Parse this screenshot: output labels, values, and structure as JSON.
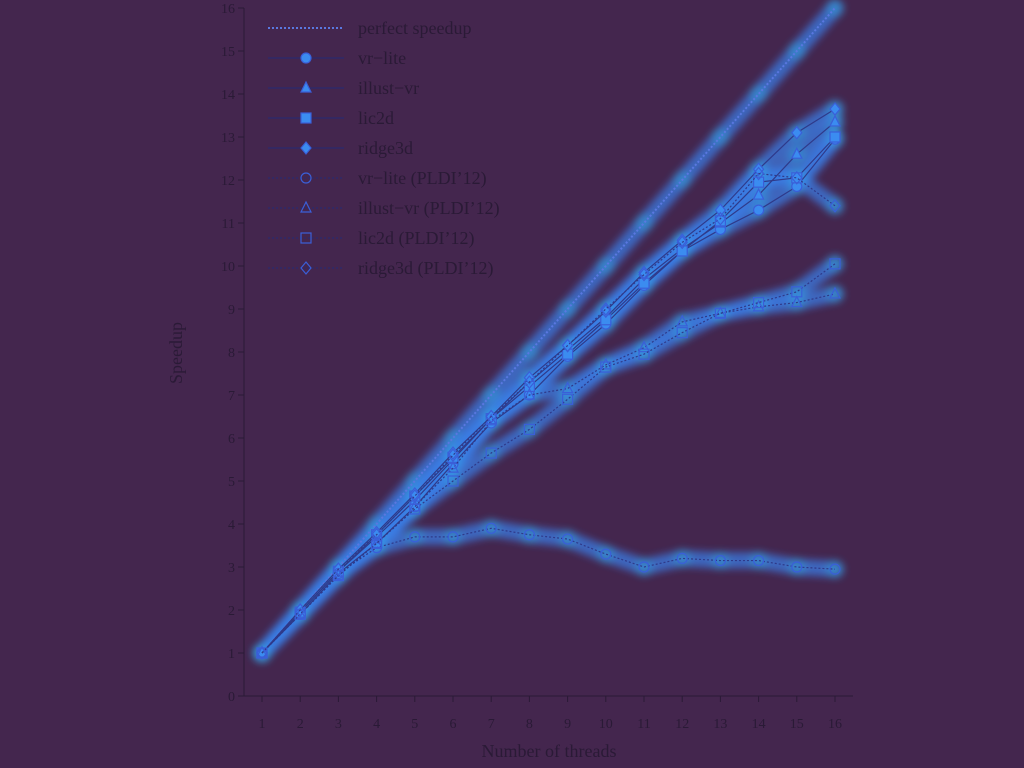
{
  "chart_data": {
    "type": "line",
    "title": "",
    "xlabel": "Number of threads",
    "ylabel": "Speedup",
    "xlim": [
      0.5,
      16.5
    ],
    "ylim": [
      0,
      16
    ],
    "x": [
      1,
      2,
      3,
      4,
      5,
      6,
      7,
      8,
      9,
      10,
      11,
      12,
      13,
      14,
      15,
      16
    ],
    "xticks": [
      1,
      2,
      3,
      4,
      5,
      6,
      7,
      8,
      9,
      10,
      11,
      12,
      13,
      14,
      15,
      16
    ],
    "yticks": [
      0,
      1,
      2,
      3,
      4,
      5,
      6,
      7,
      8,
      9,
      10,
      11,
      12,
      13,
      14,
      15,
      16
    ],
    "grid": false,
    "legend_position": "top-left",
    "colors": {
      "background": "#44264e",
      "glow": "#3a8cff",
      "glow_core": "#2fd0ff",
      "line": "#2a1a36"
    },
    "series": [
      {
        "name": "perfect speedup",
        "marker": "none",
        "dash": "dotted",
        "values": [
          1,
          2,
          3,
          4,
          5,
          6,
          7,
          8,
          9,
          10,
          11,
          12,
          13,
          14,
          15,
          16
        ]
      },
      {
        "name": "vr−lite",
        "marker": "circle-filled",
        "dash": "solid",
        "values": [
          1,
          1.9,
          2.85,
          3.55,
          4.4,
          5.4,
          6.35,
          7.0,
          7.9,
          8.65,
          9.55,
          10.35,
          10.85,
          11.3,
          11.85,
          12.95
        ]
      },
      {
        "name": "illust−vr",
        "marker": "triangle-filled",
        "dash": "solid",
        "values": [
          1,
          1.95,
          2.9,
          3.7,
          4.55,
          5.5,
          6.45,
          7.3,
          8.05,
          8.8,
          9.7,
          10.4,
          11.0,
          11.65,
          12.6,
          13.35
        ]
      },
      {
        "name": "lic2d",
        "marker": "square-filled",
        "dash": "solid",
        "values": [
          1,
          1.95,
          2.9,
          3.75,
          4.65,
          5.55,
          6.45,
          7.2,
          7.95,
          8.75,
          9.6,
          10.35,
          11.05,
          11.95,
          12.05,
          13.0
        ]
      },
      {
        "name": "ridge3d",
        "marker": "diamond-filled",
        "dash": "solid",
        "values": [
          1,
          2.0,
          2.95,
          3.8,
          4.7,
          5.65,
          6.5,
          7.4,
          8.15,
          8.95,
          9.85,
          10.6,
          11.3,
          12.25,
          13.1,
          13.65
        ]
      },
      {
        "name": "vr−lite (PLDI’12)",
        "marker": "circle-open",
        "dash": "dotted",
        "values": [
          1,
          1.9,
          2.85,
          3.45,
          3.7,
          3.7,
          3.9,
          3.75,
          3.65,
          3.3,
          3.0,
          3.2,
          3.15,
          3.15,
          3.0,
          2.95
        ]
      },
      {
        "name": "illust−vr (PLDI’12)",
        "marker": "triangle-open",
        "dash": "dotted",
        "values": [
          1,
          1.9,
          2.8,
          3.55,
          4.4,
          5.3,
          6.4,
          7.0,
          7.15,
          7.7,
          8.1,
          8.7,
          8.9,
          9.05,
          9.15,
          9.35
        ]
      },
      {
        "name": "lic2d (PLDI’12)",
        "marker": "square-open",
        "dash": "dotted",
        "values": [
          1,
          1.9,
          2.8,
          3.55,
          4.35,
          5.0,
          5.65,
          6.2,
          6.9,
          7.65,
          7.95,
          8.45,
          8.9,
          9.15,
          9.4,
          10.05
        ]
      },
      {
        "name": "ridge3d (PLDI’12)",
        "marker": "diamond-open",
        "dash": "dotted",
        "values": [
          1,
          2.0,
          2.95,
          3.75,
          4.65,
          5.6,
          6.5,
          7.3,
          8.15,
          9.0,
          9.8,
          10.55,
          11.1,
          12.15,
          12.05,
          11.4
        ]
      }
    ]
  }
}
